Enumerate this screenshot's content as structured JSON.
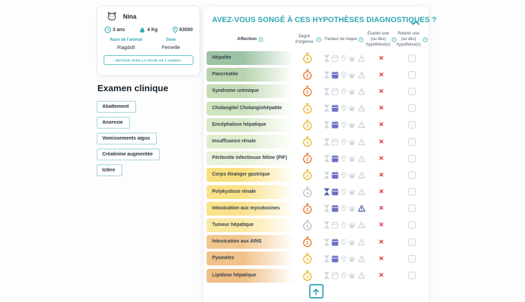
{
  "accent": {
    "teal": "#2ca6b5",
    "red_x": "#d7282f",
    "urgency_yellow": "#eab52c",
    "urgency_orange": "#e8762d",
    "urgency_gray": "#b9bdc4",
    "risk_inactive": "#ccd1da",
    "risk_active_blue": "#3f4e9e",
    "risk_active_purple": "#6b70c3"
  },
  "patient_card": {
    "name": "Nina",
    "age": "3 ans",
    "weight": "4 Kg",
    "postal_code": "63000",
    "race_label": "Race de l'animal",
    "race_value": "Ragdoll",
    "sex_label": "Sexe",
    "sex_value": "Femelle",
    "back_button": "RETOUR VERS LA FICHE DE L'ANIMAL"
  },
  "clinical_exam": {
    "title": "Examen clinique",
    "tags": [
      "Abattement",
      "Anorexie",
      "Vomissements aigus",
      "Créatinine augmentée",
      "Ictère"
    ]
  },
  "hypotheses_panel": {
    "title": "AVEZ-VOUS SONGÉ À CES HYPOTHÈSES DIAGNOSTIQUES ?",
    "columns": [
      "Affection",
      "Degré d'urgence",
      "Facteur de risque",
      "Écarter une (ou des) hypothèse(s)",
      "Retenir une (ou des) hypothèse(s)"
    ],
    "risk_icon_names": [
      "hourglass",
      "calendar",
      "pin",
      "paw",
      "triangle"
    ],
    "discard_symbol": "✕",
    "rows": [
      {
        "name": "Hépatite",
        "color": "#9cc3a3",
        "urgency": "3",
        "urgency_color": "#eab52c",
        "risks": []
      },
      {
        "name": "Pancréatite",
        "color": "#b7d4ad",
        "urgency": "2",
        "urgency_color": "#e8762d",
        "risks": [
          "calendar"
        ]
      },
      {
        "name": "Syndrome urémique",
        "color": "#c5dcb7",
        "urgency": "2",
        "urgency_color": "#e8762d",
        "risks": []
      },
      {
        "name": "Cholangite/ Cholangiohépatite",
        "color": "#cfe3be",
        "urgency": "3",
        "urgency_color": "#eab52c",
        "risks": [
          "calendar"
        ]
      },
      {
        "name": "Encéphalose hépatique",
        "color": "#d7e8c6",
        "urgency": "3",
        "urgency_color": "#eab52c",
        "risks": [
          "calendar"
        ]
      },
      {
        "name": "Insuffisance rénale",
        "color": "#dfedce",
        "urgency": "3",
        "urgency_color": "#eab52c",
        "risks": []
      },
      {
        "name": "Péritonite infectieuse féline (PIF)",
        "color": "#e7f2d8",
        "urgency": "2",
        "urgency_color": "#e8762d",
        "risks": [
          "calendar"
        ]
      },
      {
        "name": "Corps étranger gastrique",
        "color": "#f8e07e",
        "urgency": "3",
        "urgency_color": "#eab52c",
        "risks": [
          "calendar"
        ]
      },
      {
        "name": "Polykystose rénale",
        "color": "#f9e289",
        "urgency": "4",
        "urgency_color": "#b9bdc4",
        "risks": [
          "hourglass",
          "calendar"
        ]
      },
      {
        "name": "Intoxication aux mycotoxines",
        "color": "#f9e28b",
        "urgency": "2",
        "urgency_color": "#e8762d",
        "risks": [
          "calendar",
          "triangle"
        ]
      },
      {
        "name": "Tumeur hépatique",
        "color": "#fae9a2",
        "urgency": "4",
        "urgency_color": "#b9bdc4",
        "risks": []
      },
      {
        "name": "Intoxication aux AINS",
        "color": "#f2c78f",
        "urgency": "2",
        "urgency_color": "#e8762d",
        "risks": [
          "calendar"
        ]
      },
      {
        "name": "Pyomètre",
        "color": "#f1c289",
        "urgency": "3",
        "urgency_color": "#eab52c",
        "risks": [
          "calendar"
        ]
      },
      {
        "name": "Lipidose hépatique",
        "color": "#f0bf85",
        "urgency": "3",
        "urgency_color": "#eab52c",
        "risks": []
      }
    ]
  }
}
